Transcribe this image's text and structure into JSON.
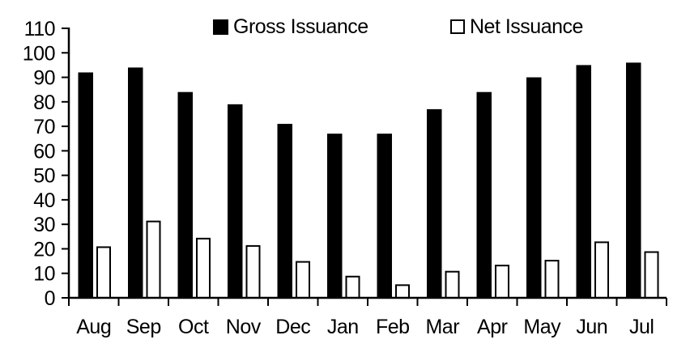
{
  "chart_data": {
    "type": "bar",
    "title": "",
    "xlabel": "",
    "ylabel": "",
    "categories": [
      "Aug",
      "Sep",
      "Oct",
      "Nov",
      "Dec",
      "Jan",
      "Feb",
      "Mar",
      "Apr",
      "May",
      "Jun",
      "Jul"
    ],
    "series": [
      {
        "name": "Gross Issuance",
        "fill": "#000000",
        "stroke": "#000000",
        "values": [
          92,
          94,
          84,
          79,
          71,
          67,
          67,
          77,
          84,
          90,
          95,
          96
        ]
      },
      {
        "name": "Net Issuance",
        "fill": "#ffffff",
        "stroke": "#000000",
        "values": [
          21,
          31.5,
          24.5,
          21.5,
          15,
          9,
          5.5,
          11,
          13.5,
          15.5,
          23,
          19
        ]
      }
    ],
    "ylim": [
      0,
      110
    ],
    "yticks": [
      0,
      10,
      20,
      30,
      40,
      50,
      60,
      70,
      80,
      90,
      100,
      110
    ],
    "grid": false,
    "legend_position": "top",
    "axis_color": "#000000",
    "background_color": "#ffffff"
  }
}
